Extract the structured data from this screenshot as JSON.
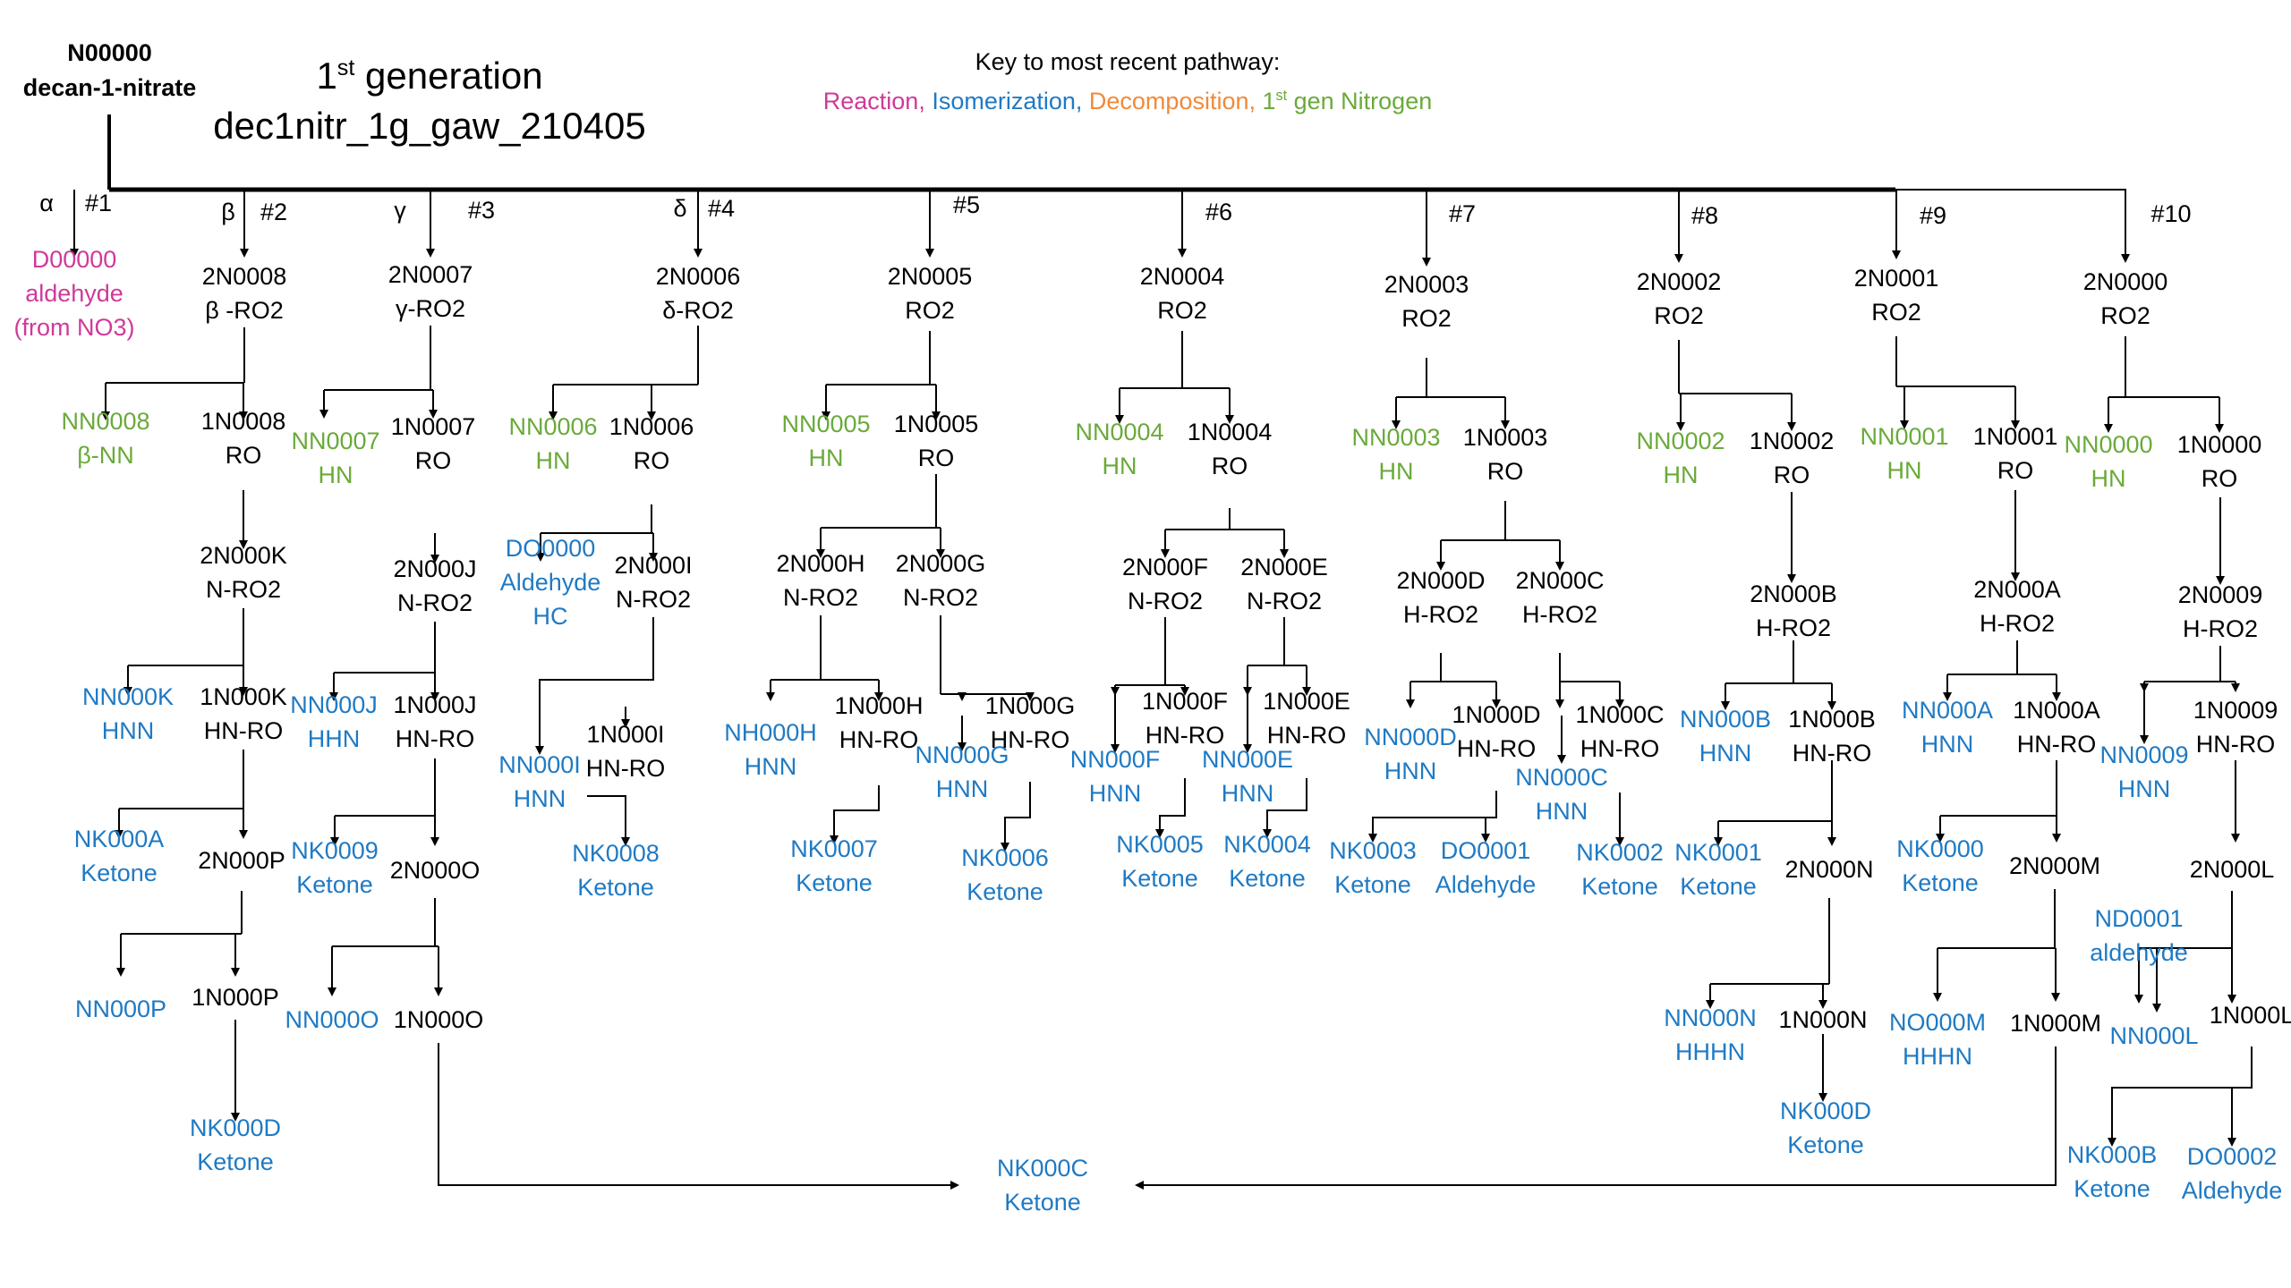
{
  "colors": {
    "black": "#000000",
    "pink": "#d0399a",
    "blue": "#1f7ac4",
    "green": "#6aaa3a",
    "orange": "#f08a3a",
    "line": "#000000"
  },
  "header": {
    "root_id": "N00000",
    "root_name": "decan-1-nitrate",
    "generation_num": "1",
    "generation_sup": "st",
    "generation_word": " generation",
    "file_name": "dec1nitr_1g_gaw_210405",
    "key_title": "Key to most recent pathway:",
    "key_reaction": "Reaction, ",
    "key_isomerization": "Isomerization, ",
    "key_decomposition": "Decomposition, ",
    "key_nitrogen_num": "1",
    "key_nitrogen_sup": "st",
    "key_nitrogen_text": " gen Nitrogen"
  },
  "branch_labels": [
    {
      "id": "greek-alpha",
      "text": "α"
    },
    {
      "id": "branch-1",
      "text": "#1"
    },
    {
      "id": "greek-beta",
      "text": "β"
    },
    {
      "id": "branch-2",
      "text": "#2"
    },
    {
      "id": "greek-gamma",
      "text": "γ"
    },
    {
      "id": "branch-3",
      "text": "#3"
    },
    {
      "id": "greek-delta",
      "text": "δ"
    },
    {
      "id": "branch-4",
      "text": "#4"
    },
    {
      "id": "branch-5",
      "text": "#5"
    },
    {
      "id": "branch-6",
      "text": "#6"
    },
    {
      "id": "branch-7",
      "text": "#7"
    },
    {
      "id": "branch-8",
      "text": "#8"
    },
    {
      "id": "branch-9",
      "text": "#9"
    },
    {
      "id": "branch-10",
      "text": "#10"
    }
  ],
  "nodes": [
    {
      "id": "D00000",
      "color": "pink",
      "lines": [
        "D00000",
        "aldehyde",
        "(from NO3)"
      ]
    },
    {
      "id": "2N0008",
      "color": "black",
      "lines": [
        "2N0008",
        "β -RO2"
      ]
    },
    {
      "id": "NN0008",
      "color": "green",
      "lines": [
        "NN0008",
        "β-NN"
      ]
    },
    {
      "id": "1N0008",
      "color": "black",
      "lines": [
        "1N0008",
        "RO"
      ]
    },
    {
      "id": "2N000K",
      "color": "black",
      "lines": [
        "2N000K",
        "N-RO2"
      ]
    },
    {
      "id": "NN000K",
      "color": "blue",
      "lines": [
        "NN000K",
        "HNN"
      ]
    },
    {
      "id": "1N000K",
      "color": "black",
      "lines": [
        "1N000K",
        "HN-RO"
      ]
    },
    {
      "id": "NK000A",
      "color": "blue",
      "lines": [
        "NK000A",
        "Ketone"
      ]
    },
    {
      "id": "2N000P",
      "color": "black",
      "lines": [
        "2N000P"
      ]
    },
    {
      "id": "NN000P",
      "color": "blue",
      "lines": [
        "NN000P"
      ]
    },
    {
      "id": "1N000P",
      "color": "black",
      "lines": [
        "1N000P"
      ]
    },
    {
      "id": "NK000D",
      "color": "blue",
      "lines": [
        "NK000D",
        "Ketone"
      ]
    },
    {
      "id": "2N0007",
      "color": "black",
      "lines": [
        "2N0007",
        "γ-RO2"
      ]
    },
    {
      "id": "NN0007",
      "color": "green",
      "lines": [
        "NN0007",
        "HN"
      ]
    },
    {
      "id": "1N0007",
      "color": "black",
      "lines": [
        "1N0007",
        "RO"
      ]
    },
    {
      "id": "2N000J",
      "color": "black",
      "lines": [
        "2N000J",
        "N-RO2"
      ]
    },
    {
      "id": "NN000J",
      "color": "blue",
      "lines": [
        "NN000J",
        "HHN"
      ]
    },
    {
      "id": "1N000J",
      "color": "black",
      "lines": [
        "1N000J",
        "HN-RO"
      ]
    },
    {
      "id": "NK0009",
      "color": "blue",
      "lines": [
        "NK0009",
        "Ketone"
      ]
    },
    {
      "id": "2N000O",
      "color": "black",
      "lines": [
        "2N000O"
      ]
    },
    {
      "id": "NN000O",
      "color": "blue",
      "lines": [
        "NN000O"
      ]
    },
    {
      "id": "1N000O",
      "color": "black",
      "lines": [
        "1N000O"
      ]
    },
    {
      "id": "2N0006",
      "color": "black",
      "lines": [
        "2N0006",
        "δ-RO2"
      ]
    },
    {
      "id": "NN0006",
      "color": "green",
      "lines": [
        "NN0006",
        "HN"
      ]
    },
    {
      "id": "1N0006",
      "color": "black",
      "lines": [
        "1N0006",
        "RO"
      ]
    },
    {
      "id": "DO0000",
      "color": "blue",
      "lines": [
        "DO0000",
        "Aldehyde",
        "HC"
      ]
    },
    {
      "id": "2N000I",
      "color": "black",
      "lines": [
        "2N000I",
        "N-RO2"
      ]
    },
    {
      "id": "NN000I",
      "color": "blue",
      "lines": [
        "NN000I",
        "HNN"
      ]
    },
    {
      "id": "1N000I",
      "color": "black",
      "lines": [
        "1N000I",
        "HN-RO"
      ]
    },
    {
      "id": "NK0008",
      "color": "blue",
      "lines": [
        "NK0008",
        "Ketone"
      ]
    },
    {
      "id": "2N0005",
      "color": "black",
      "lines": [
        "2N0005",
        "RO2"
      ]
    },
    {
      "id": "NN0005",
      "color": "green",
      "lines": [
        "NN0005",
        "HN"
      ]
    },
    {
      "id": "1N0005",
      "color": "black",
      "lines": [
        "1N0005",
        "RO"
      ]
    },
    {
      "id": "2N000H",
      "color": "black",
      "lines": [
        "2N000H",
        "N-RO2"
      ]
    },
    {
      "id": "2N000G",
      "color": "black",
      "lines": [
        "2N000G",
        "N-RO2"
      ]
    },
    {
      "id": "NH000H",
      "color": "blue",
      "lines": [
        "NH000H",
        "HNN"
      ]
    },
    {
      "id": "1N000H",
      "color": "black",
      "lines": [
        "1N000H",
        "HN-RO"
      ]
    },
    {
      "id": "NK0007",
      "color": "blue",
      "lines": [
        "NK0007",
        "Ketone"
      ]
    },
    {
      "id": "NN000G",
      "color": "blue",
      "lines": [
        "NN000G",
        "HNN"
      ]
    },
    {
      "id": "1N000G",
      "color": "black",
      "lines": [
        "1N000G",
        "HN-RO"
      ]
    },
    {
      "id": "NK0006",
      "color": "blue",
      "lines": [
        "NK0006",
        "Ketone"
      ]
    },
    {
      "id": "2N0004",
      "color": "black",
      "lines": [
        "2N0004",
        "RO2"
      ]
    },
    {
      "id": "NN0004",
      "color": "green",
      "lines": [
        "NN0004",
        "HN"
      ]
    },
    {
      "id": "1N0004",
      "color": "black",
      "lines": [
        "1N0004",
        "RO"
      ]
    },
    {
      "id": "2N000F",
      "color": "black",
      "lines": [
        "2N000F",
        "N-RO2"
      ]
    },
    {
      "id": "2N000E",
      "color": "black",
      "lines": [
        "2N000E",
        "N-RO2"
      ]
    },
    {
      "id": "NN000F",
      "color": "blue",
      "lines": [
        "NN000F",
        "HNN"
      ]
    },
    {
      "id": "1N000F",
      "color": "black",
      "lines": [
        "1N000F",
        "HN-RO"
      ]
    },
    {
      "id": "NK0005",
      "color": "blue",
      "lines": [
        "NK0005",
        "Ketone"
      ]
    },
    {
      "id": "NN000E",
      "color": "blue",
      "lines": [
        "NN000E",
        "HNN"
      ]
    },
    {
      "id": "1N000E",
      "color": "black",
      "lines": [
        "1N000E",
        "HN-RO"
      ]
    },
    {
      "id": "NK0004",
      "color": "blue",
      "lines": [
        "NK0004",
        "Ketone"
      ]
    },
    {
      "id": "2N0003",
      "color": "black",
      "lines": [
        "2N0003",
        "RO2"
      ]
    },
    {
      "id": "NN0003",
      "color": "green",
      "lines": [
        "NN0003",
        "HN"
      ]
    },
    {
      "id": "1N0003",
      "color": "black",
      "lines": [
        "1N0003",
        "RO"
      ]
    },
    {
      "id": "2N000D",
      "color": "black",
      "lines": [
        "2N000D",
        "H-RO2"
      ]
    },
    {
      "id": "2N000C",
      "color": "black",
      "lines": [
        "2N000C",
        "H-RO2"
      ]
    },
    {
      "id": "NN000D",
      "color": "blue",
      "lines": [
        "NN000D",
        "HNN"
      ]
    },
    {
      "id": "1N000D",
      "color": "black",
      "lines": [
        "1N000D",
        "HN-RO"
      ]
    },
    {
      "id": "NK0003",
      "color": "blue",
      "lines": [
        "NK0003",
        "Ketone"
      ]
    },
    {
      "id": "DO0001",
      "color": "blue",
      "lines": [
        "DO0001",
        "Aldehyde"
      ]
    },
    {
      "id": "NN000C",
      "color": "blue",
      "lines": [
        "NN000C",
        "HNN"
      ]
    },
    {
      "id": "1N000C",
      "color": "black",
      "lines": [
        "1N000C",
        "HN-RO"
      ]
    },
    {
      "id": "NK0002",
      "color": "blue",
      "lines": [
        "NK0002",
        "Ketone"
      ]
    },
    {
      "id": "2N0002",
      "color": "black",
      "lines": [
        "2N0002",
        "RO2"
      ]
    },
    {
      "id": "NN0002",
      "color": "green",
      "lines": [
        "NN0002",
        "HN"
      ]
    },
    {
      "id": "1N0002",
      "color": "black",
      "lines": [
        "1N0002",
        "RO"
      ]
    },
    {
      "id": "2N000B",
      "color": "black",
      "lines": [
        "2N000B",
        "H-RO2"
      ]
    },
    {
      "id": "NN000B",
      "color": "blue",
      "lines": [
        "NN000B",
        "HNN"
      ]
    },
    {
      "id": "1N000B",
      "color": "black",
      "lines": [
        "1N000B",
        "HN-RO"
      ]
    },
    {
      "id": "NK0001",
      "color": "blue",
      "lines": [
        "NK0001",
        "Ketone"
      ]
    },
    {
      "id": "2N000N",
      "color": "black",
      "lines": [
        "2N000N"
      ]
    },
    {
      "id": "NN000N",
      "color": "blue",
      "lines": [
        "NN000N",
        "HHHN"
      ]
    },
    {
      "id": "1N000N",
      "color": "black",
      "lines": [
        "1N000N"
      ]
    },
    {
      "id": "NK000D2",
      "color": "blue",
      "lines": [
        "NK000D",
        "Ketone"
      ]
    },
    {
      "id": "2N0001",
      "color": "black",
      "lines": [
        "2N0001",
        "RO2"
      ]
    },
    {
      "id": "NN0001",
      "color": "green",
      "lines": [
        "NN0001",
        "HN"
      ]
    },
    {
      "id": "1N0001",
      "color": "black",
      "lines": [
        "1N0001",
        "RO"
      ]
    },
    {
      "id": "2N000A",
      "color": "black",
      "lines": [
        "2N000A",
        "H-RO2"
      ]
    },
    {
      "id": "NN000A",
      "color": "blue",
      "lines": [
        "NN000A",
        "HNN"
      ]
    },
    {
      "id": "1N000A",
      "color": "black",
      "lines": [
        "1N000A",
        "HN-RO"
      ]
    },
    {
      "id": "NK0000",
      "color": "blue",
      "lines": [
        "NK0000",
        "Ketone"
      ]
    },
    {
      "id": "2N000M",
      "color": "black",
      "lines": [
        "2N000M"
      ]
    },
    {
      "id": "NO000M",
      "color": "blue",
      "lines": [
        "NO000M",
        "HHHN"
      ]
    },
    {
      "id": "1N000M",
      "color": "black",
      "lines": [
        "1N000M"
      ]
    },
    {
      "id": "2N0000",
      "color": "black",
      "lines": [
        "2N0000",
        "RO2"
      ]
    },
    {
      "id": "NN0000",
      "color": "green",
      "lines": [
        "NN0000",
        "HN"
      ]
    },
    {
      "id": "1N0000",
      "color": "black",
      "lines": [
        "1N0000",
        "RO"
      ]
    },
    {
      "id": "2N0009",
      "color": "black",
      "lines": [
        "2N0009",
        "H-RO2"
      ]
    },
    {
      "id": "NN0009",
      "color": "blue",
      "lines": [
        "NN0009",
        "HNN"
      ]
    },
    {
      "id": "1N0009",
      "color": "black",
      "lines": [
        "1N0009",
        "HN-RO"
      ]
    },
    {
      "id": "2N000L",
      "color": "black",
      "lines": [
        "2N000L"
      ]
    },
    {
      "id": "ND0001",
      "color": "blue",
      "lines": [
        "ND0001",
        "aldehyde"
      ]
    },
    {
      "id": "NN000L",
      "color": "blue",
      "lines": [
        "NN000L"
      ]
    },
    {
      "id": "1N000L",
      "color": "black",
      "lines": [
        "1N000L"
      ]
    },
    {
      "id": "NK000B",
      "color": "blue",
      "lines": [
        "NK000B",
        "Ketone"
      ]
    },
    {
      "id": "DO0002",
      "color": "blue",
      "lines": [
        "DO0002",
        "Aldehyde"
      ]
    },
    {
      "id": "NK000C",
      "color": "blue",
      "lines": [
        "NK000C",
        "Ketone"
      ]
    }
  ]
}
